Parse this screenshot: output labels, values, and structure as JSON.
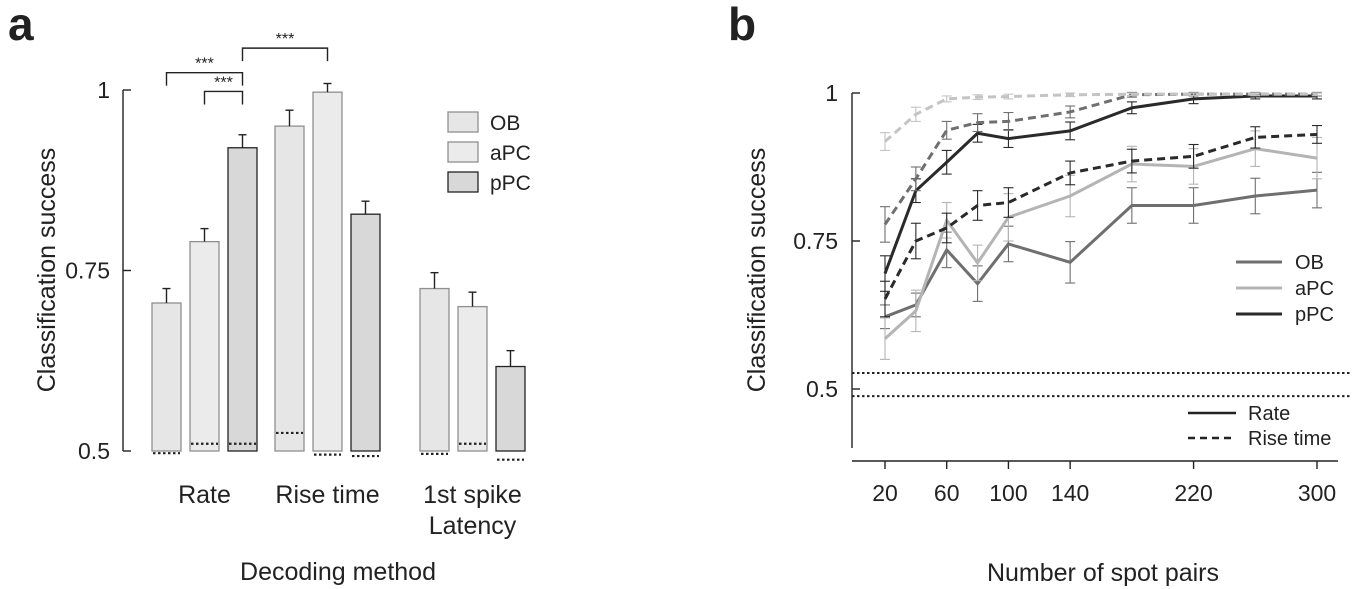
{
  "chart_data": [
    {
      "panel_label": "a",
      "type": "bar",
      "xlabel": "Decoding method",
      "ylabel": "Classification success",
      "ylim": [
        0.5,
        1.0
      ],
      "yticks": [
        {
          "v": 0.5,
          "label": "0.5"
        },
        {
          "v": 0.75,
          "label": "0.75"
        },
        {
          "v": 1.0,
          "label": "1"
        }
      ],
      "categories": [
        "Rate",
        "Rise time",
        "1st spike\nLatency"
      ],
      "legend_position": "top-right",
      "series": [
        {
          "name": "OB",
          "color": "#e6e6e6",
          "values": [
            0.705,
            0.95,
            0.725
          ],
          "errors": [
            0.02,
            0.022,
            0.022
          ],
          "chance": [
            0.497,
            0.525,
            0.496
          ]
        },
        {
          "name": "aPC",
          "color": "#ebebeb",
          "values": [
            0.79,
            0.997,
            0.7
          ],
          "errors": [
            0.018,
            0.012,
            0.02
          ],
          "chance": [
            0.51,
            0.495,
            0.51
          ]
        },
        {
          "name": "pPC",
          "color": "#d8d8d8",
          "values": [
            0.92,
            0.828,
            0.617
          ],
          "errors": [
            0.018,
            0.018,
            0.022
          ],
          "chance": [
            0.51,
            0.493,
            0.488
          ]
        }
      ],
      "significance": [
        {
          "label": "***",
          "from": [
            0,
            0
          ],
          "to": [
            0,
            2
          ],
          "level": 1.024
        },
        {
          "label": "***",
          "from": [
            0,
            1
          ],
          "to": [
            0,
            2
          ],
          "level": 0.998
        },
        {
          "label": "***",
          "from": [
            0,
            2
          ],
          "to": [
            1,
            1
          ],
          "level": 1.058
        }
      ]
    },
    {
      "panel_label": "b",
      "type": "line",
      "xlabel": "Number of spot pairs",
      "ylabel": "Classification success",
      "xlim": [
        12,
        308
      ],
      "ylim": [
        0.39,
        1.0
      ],
      "xticks": [
        20,
        60,
        100,
        140,
        220,
        300
      ],
      "yticks": [
        {
          "v": 0.5,
          "label": "0.5"
        },
        {
          "v": 0.75,
          "label": "0.75"
        },
        {
          "v": 1.0,
          "label": "1"
        }
      ],
      "x": [
        20,
        40,
        60,
        80,
        100,
        140,
        180,
        220,
        260,
        300
      ],
      "chance_lines": [
        0.527,
        0.488
      ],
      "legend_position": "right",
      "series": [
        {
          "name": "OB",
          "method": "Rate",
          "color": "#6f6f6f",
          "style": "solid",
          "values": [
            0.622,
            0.642,
            0.735,
            0.678,
            0.745,
            0.714,
            0.81,
            0.81,
            0.826,
            0.836
          ],
          "errors": [
            0.02,
            0.02,
            0.03,
            0.03,
            0.03,
            0.035,
            0.03,
            0.03,
            0.03,
            0.03
          ]
        },
        {
          "name": "aPC",
          "method": "Rate",
          "color": "#b4b4b4",
          "style": "solid",
          "values": [
            0.585,
            0.632,
            0.785,
            0.713,
            0.79,
            0.826,
            0.88,
            0.876,
            0.906,
            0.89
          ],
          "errors": [
            0.035,
            0.035,
            0.03,
            0.03,
            0.04,
            0.035,
            0.03,
            0.03,
            0.03,
            0.035
          ]
        },
        {
          "name": "pPC",
          "method": "Rate",
          "color": "#2a2a2a",
          "style": "solid",
          "values": [
            0.695,
            0.835,
            0.883,
            0.932,
            0.923,
            0.936,
            0.975,
            0.99,
            0.995,
            0.995
          ],
          "errors": [
            0.03,
            0.02,
            0.02,
            0.015,
            0.015,
            0.015,
            0.01,
            0.008,
            0.005,
            0.005
          ]
        },
        {
          "name": "OB",
          "method": "Rise time",
          "color": "#6f6f6f",
          "style": "dashed",
          "values": [
            0.778,
            0.855,
            0.937,
            0.95,
            0.952,
            0.968,
            0.997,
            0.998,
            0.998,
            0.998
          ],
          "errors": [
            0.03,
            0.02,
            0.015,
            0.015,
            0.015,
            0.01,
            0.004,
            0.003,
            0.003,
            0.003
          ]
        },
        {
          "name": "aPC",
          "method": "Rise time",
          "color": "#c4c4c4",
          "style": "dashed",
          "values": [
            0.918,
            0.964,
            0.99,
            0.993,
            0.994,
            0.997,
            0.998,
            0.998,
            0.998,
            0.998
          ],
          "errors": [
            0.015,
            0.012,
            0.005,
            0.004,
            0.004,
            0.003,
            0.002,
            0.002,
            0.002,
            0.002
          ]
        },
        {
          "name": "pPC",
          "method": "Rise time",
          "color": "#2a2a2a",
          "style": "dashed",
          "values": [
            0.652,
            0.75,
            0.772,
            0.81,
            0.815,
            0.865,
            0.885,
            0.893,
            0.925,
            0.93
          ],
          "errors": [
            0.03,
            0.03,
            0.025,
            0.025,
            0.025,
            0.02,
            0.02,
            0.02,
            0.018,
            0.015
          ]
        }
      ],
      "legend_colors": [
        {
          "label": "OB",
          "color": "#6f6f6f"
        },
        {
          "label": "aPC",
          "color": "#b4b4b4"
        },
        {
          "label": "pPC",
          "color": "#2a2a2a"
        }
      ],
      "legend_styles": [
        {
          "label": "Rate",
          "style": "solid"
        },
        {
          "label": "Rise time",
          "style": "dashed"
        }
      ]
    }
  ]
}
